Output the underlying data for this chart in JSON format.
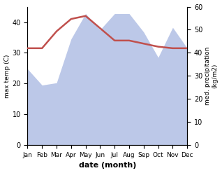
{
  "months": [
    "Jan",
    "Feb",
    "Mar",
    "Apr",
    "May",
    "Jun",
    "Jul",
    "Aug",
    "Sep",
    "Oct",
    "Nov",
    "Dec"
  ],
  "temperature": [
    31.5,
    31.5,
    37.0,
    41.0,
    42.0,
    38.0,
    34.0,
    34.0,
    33.0,
    32.0,
    31.5,
    31.5
  ],
  "precipitation": [
    33,
    26,
    27,
    46,
    57,
    50,
    57,
    57,
    49,
    38,
    51,
    42
  ],
  "temp_color": "#c0504d",
  "precip_fill_color": "#bcc8e8",
  "xlabel": "date (month)",
  "ylabel_left": "max temp (C)",
  "ylabel_right": "med. precipitation\n(kg/m2)",
  "ylim_left": [
    0,
    45
  ],
  "ylim_right": [
    0,
    60
  ],
  "yticks_left": [
    0,
    10,
    20,
    30,
    40
  ],
  "yticks_right": [
    0,
    10,
    20,
    30,
    40,
    50,
    60
  ],
  "background_color": "#ffffff",
  "figsize": [
    3.18,
    2.47
  ],
  "dpi": 100
}
